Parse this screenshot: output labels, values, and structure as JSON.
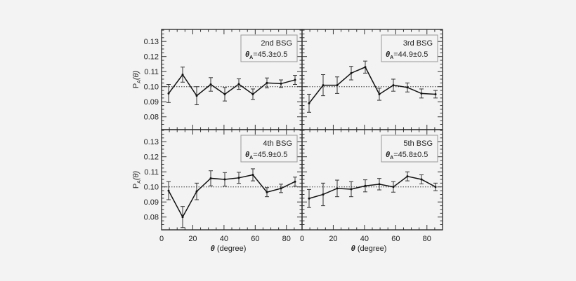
{
  "chart_data": [
    {
      "type": "line",
      "label": "2nd BSG",
      "annotation": "=45.3±0.5",
      "annotation_symbol": "θ",
      "annotation_sub": "A",
      "x": [
        4.5,
        13.5,
        22.5,
        31.5,
        40.5,
        49.5,
        58.5,
        67.5,
        76.5,
        85.5
      ],
      "y": [
        0.0955,
        0.108,
        0.094,
        0.1015,
        0.095,
        0.1017,
        0.095,
        0.1025,
        0.102,
        0.1045
      ],
      "err": [
        0.006,
        0.005,
        0.006,
        0.0045,
        0.0045,
        0.0035,
        0.0035,
        0.0033,
        0.0025,
        0.003
      ]
    },
    {
      "type": "line",
      "label": "3rd BSG",
      "annotation": "=44.9±0.5",
      "annotation_symbol": "θ",
      "annotation_sub": "A",
      "x": [
        4.5,
        13.5,
        22.5,
        31.5,
        40.5,
        49.5,
        58.5,
        67.5,
        76.5,
        85.5
      ],
      "y": [
        0.089,
        0.101,
        0.101,
        0.109,
        0.113,
        0.095,
        0.101,
        0.0995,
        0.0955,
        0.095
      ],
      "err": [
        0.006,
        0.007,
        0.0055,
        0.0045,
        0.004,
        0.004,
        0.004,
        0.003,
        0.003,
        0.0025
      ]
    },
    {
      "type": "line",
      "label": "4th BSG",
      "annotation": "=45.9±0.5",
      "annotation_symbol": "θ",
      "annotation_sub": "A",
      "x": [
        4.5,
        13.5,
        22.5,
        31.5,
        40.5,
        49.5,
        58.5,
        67.5,
        76.5,
        85.5
      ],
      "y": [
        0.0975,
        0.08,
        0.097,
        0.1057,
        0.105,
        0.106,
        0.108,
        0.0965,
        0.099,
        0.1035
      ],
      "err": [
        0.006,
        0.007,
        0.0055,
        0.005,
        0.0045,
        0.0037,
        0.004,
        0.003,
        0.0028,
        0.003
      ]
    },
    {
      "type": "line",
      "label": "5th BSG",
      "annotation": "=45.8±0.5",
      "annotation_symbol": "θ",
      "annotation_sub": "A",
      "x": [
        4.5,
        13.5,
        22.5,
        31.5,
        40.5,
        49.5,
        58.5,
        67.5,
        76.5,
        85.5
      ],
      "y": [
        0.0923,
        0.095,
        0.099,
        0.0985,
        0.1007,
        0.1018,
        0.1,
        0.107,
        0.105,
        0.1
      ],
      "err": [
        0.006,
        0.0075,
        0.0055,
        0.005,
        0.004,
        0.0038,
        0.0035,
        0.003,
        0.003,
        0.0025
      ]
    }
  ],
  "shared": {
    "xlabel": "(degree)",
    "xlabel_symbol": "θ",
    "ylabel": "P",
    "ylabel_sub": "A",
    "ylabel_arg": "(θ)",
    "xlim": [
      0,
      90
    ],
    "ylim": [
      0.0715,
      0.138
    ],
    "xticks": [
      "0",
      "20",
      "40",
      "60",
      "80"
    ],
    "yticks": [
      "0.08",
      "0.09",
      "0.10",
      "0.11",
      "0.12",
      "0.13"
    ],
    "reference_line": 0.1,
    "grid": false
  }
}
